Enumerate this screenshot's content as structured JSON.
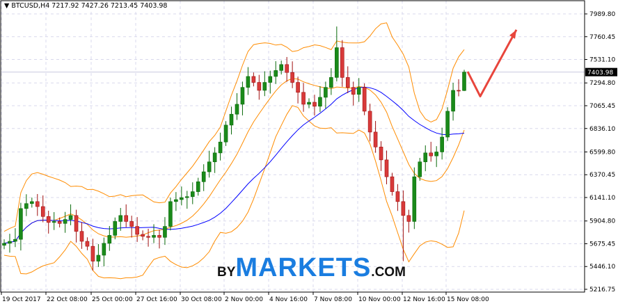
{
  "header": {
    "symbol": "BTCUSD,H4",
    "ohlc": "7217.92 7427.26 7213.45 7403.98"
  },
  "logo": {
    "by": "BY",
    "markets": "MARKETS",
    "com": ".COM"
  },
  "colors": {
    "bull": "#1a8a1a",
    "bear": "#d83a3a",
    "wick_bull": "#0a6a0a",
    "wick_bear": "#a01010",
    "bands": "#ff8c00",
    "ma": "#0000ff",
    "arrow": "#e8453c",
    "grid": "#d8d8ec"
  },
  "chart_data": {
    "type": "candlestick",
    "symbol": "BTCUSD",
    "timeframe": "H4",
    "ylim": [
      5216.75,
      7989.8
    ],
    "y_ticks": [
      "7989.80",
      "7760.45",
      "7531.10",
      "7294.80",
      "7065.45",
      "6836.10",
      "6599.80",
      "6370.45",
      "6141.10",
      "5904.80",
      "5675.45",
      "5446.10",
      "5216.75"
    ],
    "x_ticks": [
      "19 Oct 2017",
      "22 Oct 08:00",
      "25 Oct 00:00",
      "27 Oct 16:00",
      "30 Oct 08:00",
      "2 Nov 00:00",
      "4 Nov 16:00",
      "7 Nov 08:00",
      "10 Nov 00:00",
      "12 Nov 16:00",
      "15 Nov 08:00"
    ],
    "current_price": "7403.98",
    "close": [
      5680,
      5700,
      5720,
      6030,
      6080,
      6100,
      6050,
      5950,
      5890,
      5900,
      5880,
      5920,
      5960,
      5800,
      5700,
      5650,
      5500,
      5560,
      5680,
      5760,
      5900,
      5960,
      5900,
      5850,
      5770,
      5750,
      5740,
      5760,
      5740,
      5850,
      6100,
      6120,
      6140,
      6150,
      6200,
      6300,
      6400,
      6500,
      6590,
      6700,
      6870,
      6980,
      7080,
      7250,
      7360,
      7300,
      7220,
      7300,
      7360,
      7420,
      7480,
      7400,
      7300,
      7200,
      7080,
      7100,
      7060,
      7150,
      7250,
      7350,
      7650,
      7350,
      7250,
      7180,
      7250,
      7010,
      6800,
      6650,
      6520,
      6350,
      6200,
      6100,
      5960,
      5900,
      6350,
      6500,
      6590,
      6560,
      6600,
      6750,
      7010,
      7220,
      7217.92,
      7403.98
    ],
    "last_candle": {
      "open": 7217.92,
      "high": 7427.26,
      "low": 7213.45,
      "close": 7403.98
    },
    "notable_high": {
      "index": 60,
      "value": 7863
    },
    "notable_low": {
      "index": 72,
      "value": 5500
    },
    "indicators": [
      {
        "type": "bollinger",
        "period": 10,
        "deviation": 2
      },
      {
        "type": "sma",
        "period": 25
      }
    ],
    "forecast_arrow": {
      "points": [
        7403.98,
        7160,
        7830
      ]
    }
  }
}
